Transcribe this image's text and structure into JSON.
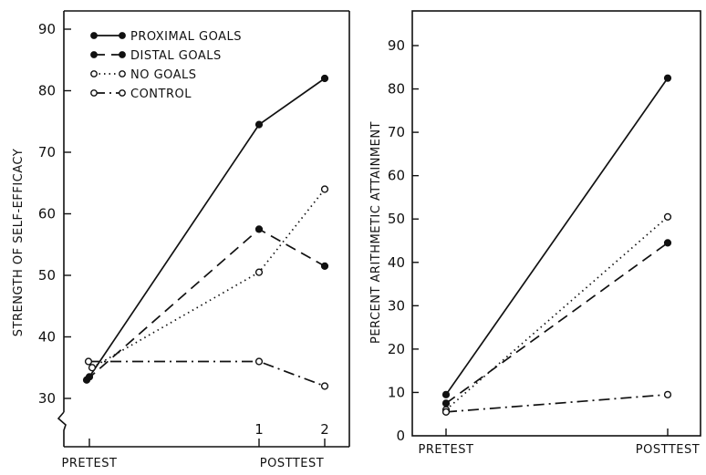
{
  "chart_data": [
    {
      "type": "line",
      "ylabel": "STRENGTH OF SELF-EFFICACY",
      "ylim": [
        30,
        90
      ],
      "yticks": [
        "30",
        "40",
        "50",
        "60",
        "70",
        "80",
        "90"
      ],
      "axis_break": true,
      "x_labels": {
        "pretest": "PRETEST",
        "posttest": "POSTTEST",
        "session1": "1",
        "session2": "2"
      },
      "x": [
        "PRETEST",
        "1",
        "2"
      ],
      "legend": "top-left",
      "series": [
        {
          "name": "PROXIMAL GOALS",
          "marker": "filled",
          "dash": "solid",
          "values": [
            33.5,
            74.5,
            82
          ]
        },
        {
          "name": "DISTAL GOALS",
          "marker": "filled",
          "dash": "dashed",
          "values": [
            33,
            57.5,
            51.5
          ]
        },
        {
          "name": "NO GOALS",
          "marker": "open",
          "dash": "dotted",
          "values": [
            35,
            50.5,
            64
          ]
        },
        {
          "name": "CONTROL",
          "marker": "open",
          "dash": "dashdot",
          "values": [
            36,
            36,
            32
          ]
        }
      ]
    },
    {
      "type": "line",
      "ylabel": "PERCENT ARITHMETIC ATTAINMENT",
      "ylim": [
        0,
        90
      ],
      "yticks": [
        "0",
        "10",
        "20",
        "30",
        "40",
        "50",
        "60",
        "70",
        "80",
        "90"
      ],
      "x_labels": {
        "pretest": "PRETEST",
        "posttest": "POSTTEST"
      },
      "x": [
        "PRETEST",
        "POSTTEST"
      ],
      "series": [
        {
          "name": "PROXIMAL GOALS",
          "marker": "filled",
          "dash": "solid",
          "values": [
            9.5,
            82.5
          ]
        },
        {
          "name": "DISTAL GOALS",
          "marker": "filled",
          "dash": "dashed",
          "values": [
            7.5,
            44.5
          ]
        },
        {
          "name": "NO GOALS",
          "marker": "open",
          "dash": "dotted",
          "values": [
            6,
            50.5
          ]
        },
        {
          "name": "CONTROL",
          "marker": "open",
          "dash": "dashdot",
          "values": [
            5.5,
            9.5
          ]
        }
      ]
    }
  ]
}
